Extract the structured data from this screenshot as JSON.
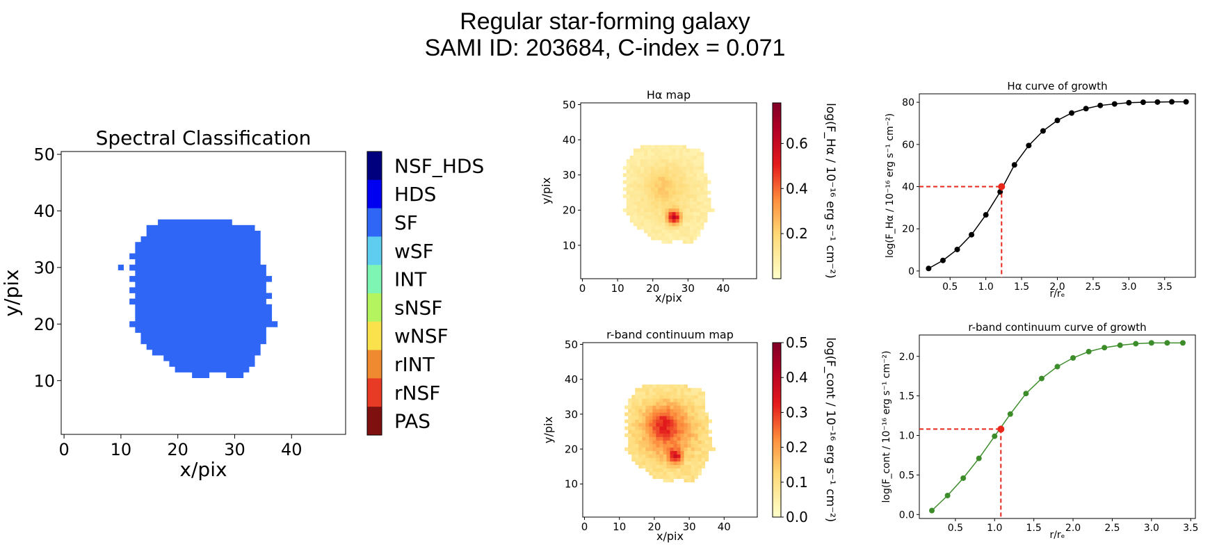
{
  "figure": {
    "title_line1": "Regular star-forming galaxy",
    "title_line2": "SAMI ID: 203684, C-index = 0.071"
  },
  "chart_data": [
    {
      "id": "classification",
      "type": "heatmap",
      "title": "Spectral Classification",
      "xlabel": "x/pix",
      "ylabel": "y/pix",
      "xlim": [
        -0.5,
        49.5
      ],
      "ylim": [
        0.5,
        50.5
      ],
      "xticks": [
        0,
        10,
        20,
        30,
        40
      ],
      "yticks": [
        10,
        20,
        30,
        40,
        50
      ],
      "colorbar": {
        "type": "categorical",
        "categories": [
          "NSF_HDS",
          "HDS",
          "SF",
          "wSF",
          "INT",
          "sNSF",
          "wNSF",
          "rINT",
          "rNSF",
          "PAS"
        ],
        "colors": [
          "#00007f",
          "#0000f1",
          "#2f66f5",
          "#5fcdf0",
          "#7ff5b4",
          "#b4f55f",
          "#f9e24b",
          "#f08a30",
          "#e83b26",
          "#7f1010"
        ]
      },
      "map": {
        "category": "SF",
        "rows": [
          {
            "y": 11,
            "x": [
              [
                23,
                25
              ],
              [
                29,
                31
              ]
            ]
          },
          {
            "y": 12,
            "x": [
              [
                20,
                32
              ]
            ]
          },
          {
            "y": 13,
            "x": [
              [
                19,
                33
              ]
            ]
          },
          {
            "y": 14,
            "x": [
              [
                18,
                33
              ]
            ]
          },
          {
            "y": 15,
            "x": [
              [
                16,
                34
              ]
            ]
          },
          {
            "y": 16,
            "x": [
              [
                15,
                34
              ]
            ]
          },
          {
            "y": 17,
            "x": [
              [
                14,
                35
              ]
            ]
          },
          {
            "y": 18,
            "x": [
              [
                14,
                35
              ]
            ]
          },
          {
            "y": 19,
            "x": [
              [
                13,
                35
              ]
            ]
          },
          {
            "y": 20,
            "x": [
              [
                12,
                37
              ]
            ]
          },
          {
            "y": 21,
            "x": [
              [
                13,
                36
              ]
            ]
          },
          {
            "y": 22,
            "x": [
              [
                13,
                36
              ]
            ]
          },
          {
            "y": 23,
            "x": [
              [
                13,
                36
              ]
            ]
          },
          {
            "y": 24,
            "x": [
              [
                12,
                35
              ]
            ]
          },
          {
            "y": 25,
            "x": [
              [
                13,
                36
              ]
            ]
          },
          {
            "y": 26,
            "x": [
              [
                12,
                35
              ]
            ]
          },
          {
            "y": 27,
            "x": [
              [
                13,
                35
              ]
            ]
          },
          {
            "y": 28,
            "x": [
              [
                12,
                36
              ]
            ]
          },
          {
            "y": 29,
            "x": [
              [
                13,
                35
              ]
            ]
          },
          {
            "y": 30,
            "x": [
              [
                12,
                35
              ]
            ]
          },
          {
            "y": 31,
            "x": [
              [
                13,
                34
              ]
            ]
          },
          {
            "y": 32,
            "x": [
              [
                12,
                34
              ]
            ]
          },
          {
            "y": 33,
            "x": [
              [
                13,
                34
              ]
            ]
          },
          {
            "y": 34,
            "x": [
              [
                13,
                34
              ]
            ]
          },
          {
            "y": 35,
            "x": [
              [
                14,
                34
              ]
            ]
          },
          {
            "y": 36,
            "x": [
              [
                15,
                34
              ]
            ]
          },
          {
            "y": 37,
            "x": [
              [
                15,
                33
              ]
            ]
          },
          {
            "y": 38,
            "x": [
              [
                17,
                29
              ]
            ]
          }
        ],
        "extra_pixels": [
          [
            10,
            30
          ]
        ]
      }
    },
    {
      "id": "ha-map",
      "type": "heatmap",
      "title": "Hα map",
      "xlabel": "x/pix",
      "ylabel": "y/pix",
      "xlim": [
        -0.5,
        49.5
      ],
      "ylim": [
        0.5,
        50.5
      ],
      "xticks": [
        0,
        10,
        20,
        30,
        40
      ],
      "yticks": [
        10,
        20,
        30,
        40,
        50
      ],
      "colorbar": {
        "label": "log(F_Hα / 10⁻¹⁶ erg s⁻¹ cm⁻²)",
        "range": [
          0.0,
          0.78
        ],
        "ticks": [
          "0.2",
          "0.4",
          "0.6"
        ],
        "tick_values": [
          0.2,
          0.4,
          0.6
        ]
      },
      "peak_value": 0.76,
      "peak_pixel": [
        26,
        18
      ]
    },
    {
      "id": "cont-map",
      "type": "heatmap",
      "title": "r-band continuum map",
      "xlabel": "x/pix",
      "ylabel": "y/pix",
      "xlim": [
        -0.5,
        49.5
      ],
      "ylim": [
        0.5,
        50.5
      ],
      "xticks": [
        0,
        10,
        20,
        30,
        40
      ],
      "yticks": [
        10,
        20,
        30,
        40,
        50
      ],
      "colorbar": {
        "label": "log(F_cont / 10⁻¹⁶ erg s⁻¹ cm⁻²)",
        "range": [
          0.0,
          0.5
        ],
        "ticks": [
          "0.0",
          "0.1",
          "0.2",
          "0.3",
          "0.4",
          "0.5"
        ],
        "tick_values": [
          0.0,
          0.1,
          0.2,
          0.3,
          0.4,
          0.5
        ]
      },
      "peak_value": 0.48,
      "peak_pixel": [
        26,
        18
      ]
    },
    {
      "id": "ha-growth",
      "type": "line",
      "title": "Hα curve of growth",
      "xlabel": "r/rₑ",
      "ylabel": "log(F_Hα / 10⁻¹⁶ erg s⁻¹ cm⁻²)",
      "xlim": [
        0.07,
        3.93
      ],
      "ylim": [
        -3,
        84
      ],
      "xticks": [
        "0.5",
        "1.0",
        "1.5",
        "2.0",
        "2.5",
        "3.0",
        "3.5"
      ],
      "xtick_values": [
        0.5,
        1.0,
        1.5,
        2.0,
        2.5,
        3.0,
        3.5
      ],
      "yticks": [
        "0",
        "20",
        "40",
        "60",
        "80"
      ],
      "ytick_values": [
        0,
        20,
        40,
        60,
        80
      ],
      "color": "#000000",
      "x": [
        0.2,
        0.4,
        0.6,
        0.8,
        1.0,
        1.2,
        1.4,
        1.6,
        1.8,
        2.0,
        2.2,
        2.4,
        2.6,
        2.8,
        3.0,
        3.2,
        3.4,
        3.6,
        3.8
      ],
      "y": [
        1.2,
        5,
        10.2,
        17.2,
        26.6,
        37.5,
        50.3,
        59.5,
        66.4,
        71.4,
        74.9,
        77.0,
        78.5,
        79.2,
        79.8,
        80.0,
        80.1,
        80.2,
        80.2
      ],
      "half_light": {
        "x": 1.22,
        "y": 40,
        "color": "#e8261a"
      }
    },
    {
      "id": "cont-growth",
      "type": "line",
      "title": "r-band continuum curve of growth",
      "xlabel": "r/rₑ",
      "ylabel": "log(F_cont / 10⁻¹⁶ erg s⁻¹ cm⁻²)",
      "xlim": [
        0.04,
        3.56
      ],
      "ylim": [
        -0.05,
        2.27
      ],
      "xticks": [
        "0.5",
        "1.0",
        "1.5",
        "2.0",
        "2.5",
        "3.0",
        "3.5"
      ],
      "xtick_values": [
        0.5,
        1.0,
        1.5,
        2.0,
        2.5,
        3.0,
        3.5
      ],
      "yticks": [
        "0.0",
        "0.5",
        "1.0",
        "1.5",
        "2.0"
      ],
      "ytick_values": [
        0.0,
        0.5,
        1.0,
        1.5,
        2.0
      ],
      "color": "#3c8c2a",
      "x": [
        0.2,
        0.4,
        0.6,
        0.8,
        1.0,
        1.2,
        1.4,
        1.6,
        1.8,
        2.0,
        2.2,
        2.4,
        2.6,
        2.8,
        3.0,
        3.2,
        3.4
      ],
      "y": [
        0.05,
        0.24,
        0.46,
        0.71,
        0.99,
        1.27,
        1.53,
        1.72,
        1.87,
        1.98,
        2.06,
        2.11,
        2.14,
        2.16,
        2.17,
        2.17,
        2.17
      ],
      "half_light": {
        "x": 1.08,
        "y": 1.08,
        "color": "#e8261a"
      }
    }
  ]
}
